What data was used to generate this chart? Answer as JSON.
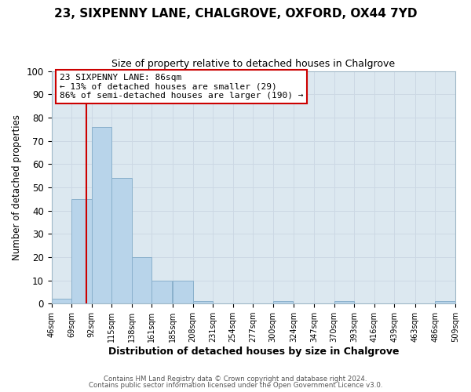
{
  "title": "23, SIXPENNY LANE, CHALGROVE, OXFORD, OX44 7YD",
  "subtitle": "Size of property relative to detached houses in Chalgrove",
  "xlabel": "Distribution of detached houses by size in Chalgrove",
  "ylabel": "Number of detached properties",
  "bar_color": "#b8d4ea",
  "bar_edge_color": "#8ab0cc",
  "bins": [
    46,
    69,
    92,
    115,
    138,
    161,
    185,
    208,
    231,
    254,
    277,
    300,
    324,
    347,
    370,
    393,
    416,
    439,
    463,
    486,
    509
  ],
  "counts": [
    2,
    45,
    76,
    54,
    20,
    10,
    10,
    1,
    0,
    0,
    0,
    1,
    0,
    0,
    1,
    0,
    0,
    0,
    0,
    1
  ],
  "tick_labels": [
    "46sqm",
    "69sqm",
    "92sqm",
    "115sqm",
    "138sqm",
    "161sqm",
    "185sqm",
    "208sqm",
    "231sqm",
    "254sqm",
    "277sqm",
    "300sqm",
    "324sqm",
    "347sqm",
    "370sqm",
    "393sqm",
    "416sqm",
    "439sqm",
    "463sqm",
    "486sqm",
    "509sqm"
  ],
  "ylim": [
    0,
    100
  ],
  "yticks": [
    0,
    10,
    20,
    30,
    40,
    50,
    60,
    70,
    80,
    90,
    100
  ],
  "property_line_x": 86,
  "vline_color": "#cc0000",
  "annotation_title": "23 SIXPENNY LANE: 86sqm",
  "annotation_line1": "← 13% of detached houses are smaller (29)",
  "annotation_line2": "86% of semi-detached houses are larger (190) →",
  "annotation_box_color": "#ffffff",
  "annotation_box_edge": "#cc0000",
  "grid_color": "#ccd8e4",
  "plot_bg_color": "#dce8f0",
  "fig_bg_color": "#ffffff",
  "footer_line1": "Contains HM Land Registry data © Crown copyright and database right 2024.",
  "footer_line2": "Contains public sector information licensed under the Open Government Licence v3.0."
}
